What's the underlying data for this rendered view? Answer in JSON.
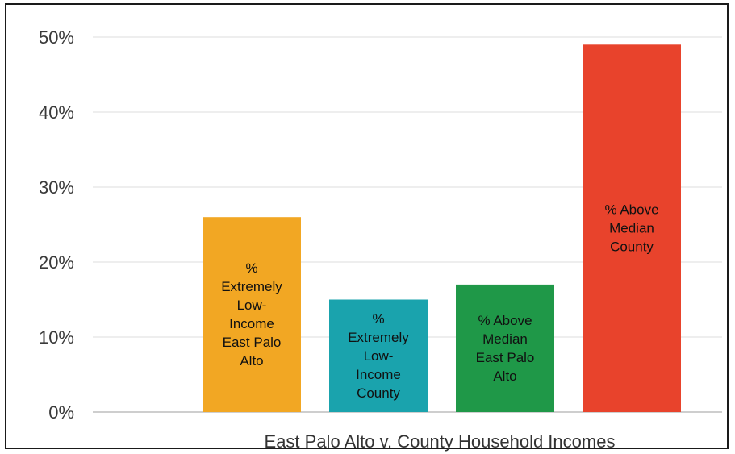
{
  "chart_data": {
    "type": "bar",
    "title": "",
    "xlabel": "East Palo Alto v. County Household Incomes",
    "ylabel": "",
    "ylim": [
      0,
      50
    ],
    "yticks": [
      0,
      10,
      20,
      30,
      40,
      50
    ],
    "ytick_labels": [
      "0%",
      "10%",
      "20%",
      "30%",
      "40%",
      "50%"
    ],
    "grid": true,
    "legend": "none",
    "categories": [
      "% Extremely Low-Income East Palo Alto",
      "% Extremely Low-Income County",
      "% Above Median East Palo Alto",
      "% Above Median County"
    ],
    "values": [
      26,
      15,
      17,
      49
    ],
    "bar_labels": [
      [
        "%",
        "Extremely",
        "Low-",
        "Income",
        "East Palo",
        "Alto"
      ],
      [
        "%",
        "Extremely",
        "Low-",
        "Income",
        "County"
      ],
      [
        "% Above",
        "Median",
        "East Palo",
        "Alto"
      ],
      [
        "% Above",
        "Median",
        "County"
      ]
    ],
    "colors": [
      "#F2A723",
      "#1AA3AD",
      "#1F9848",
      "#E8432C"
    ]
  }
}
